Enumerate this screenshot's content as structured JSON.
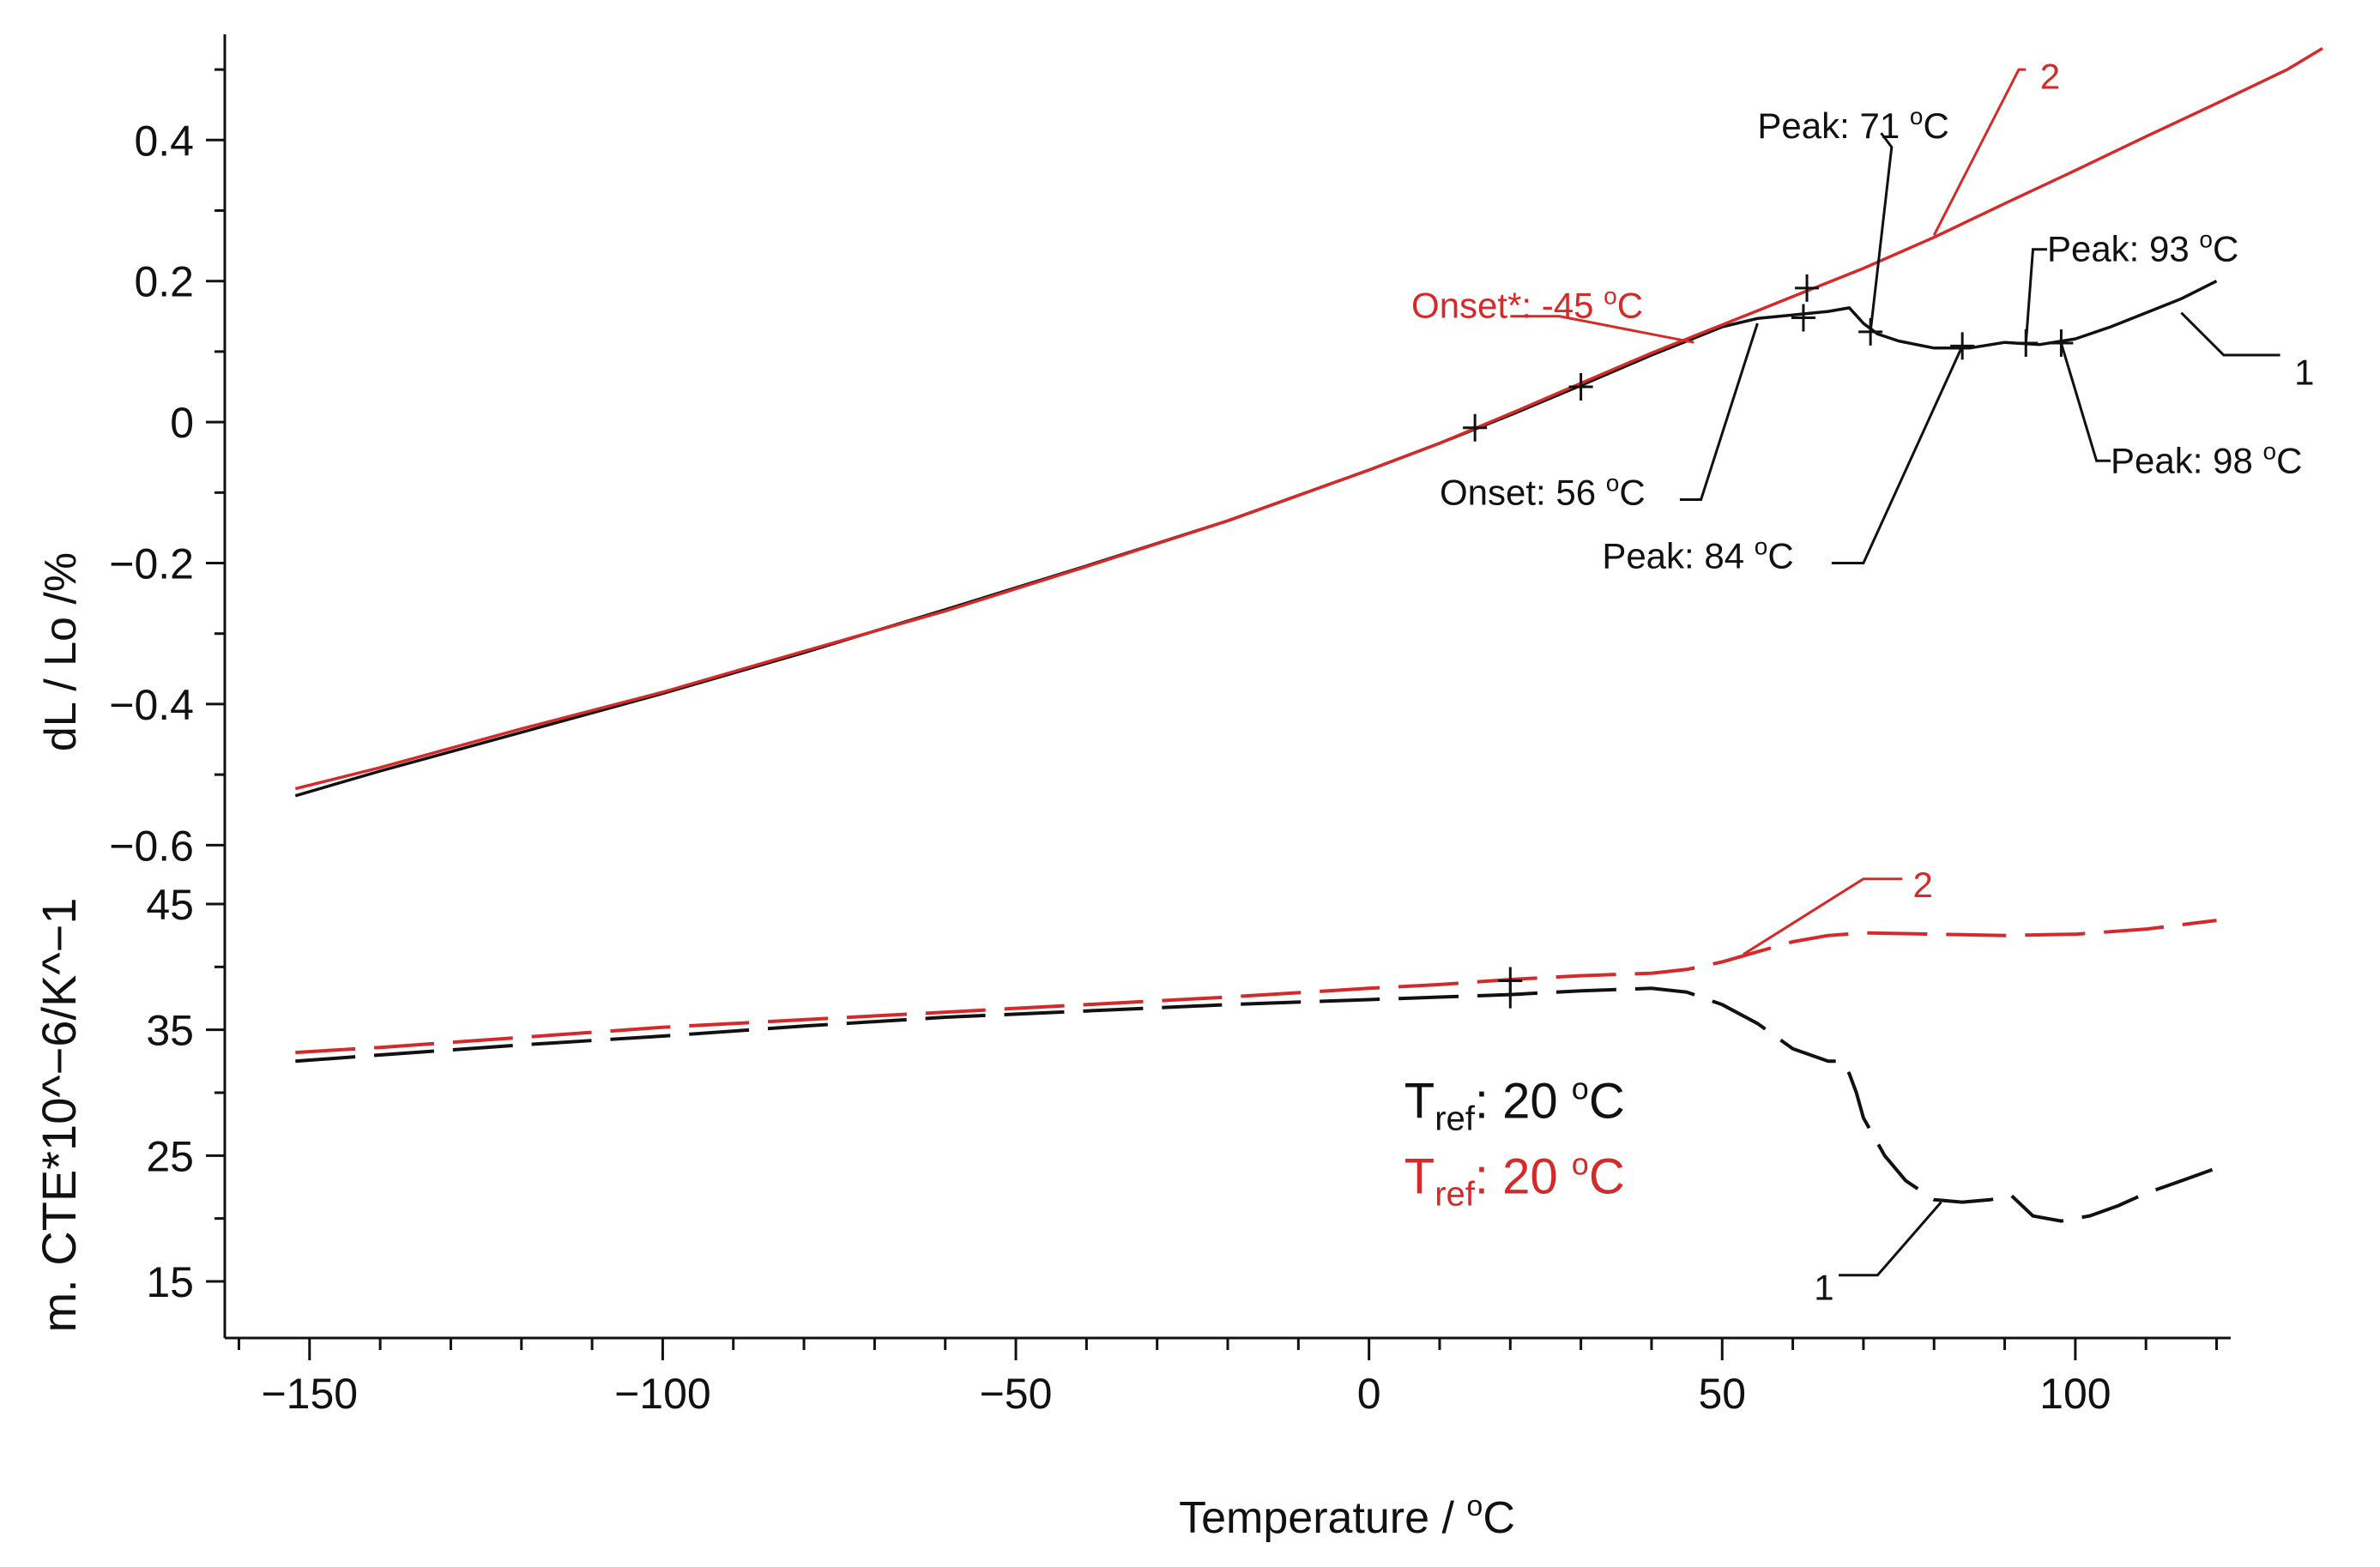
{
  "chart_data": {
    "type": "line",
    "title": "",
    "xlabel": "Temperature / °C",
    "xlabel_main": "Temperature / ",
    "xlabel_sup": "o",
    "xlabel_unit": "C",
    "xlim": [
      -162,
      122
    ],
    "xticks": [
      -150,
      -100,
      -50,
      0,
      50,
      100
    ],
    "xtick_labels": [
      "−150",
      "−100",
      "−50",
      "0",
      "50",
      "100"
    ],
    "colors": {
      "sample1": "#111111",
      "sample2": "#d42a2a"
    },
    "panels": [
      {
        "id": "dl",
        "ylabel": "dL / Lo /%",
        "ylim": [
          -0.63,
          0.55
        ],
        "yticks": [
          -0.6,
          -0.4,
          -0.2,
          0,
          0.2,
          0.4
        ],
        "ytick_labels": [
          "−0.6",
          "−0.4",
          "−0.2",
          "0",
          "0.2",
          "0.4"
        ],
        "series": [
          {
            "name": "1",
            "color": "#111111",
            "dash": false,
            "x": [
              -152,
              -140,
              -120,
              -100,
              -80,
              -60,
              -40,
              -20,
              0,
              10,
              20,
              30,
              40,
              45,
              50,
              55,
              60,
              65,
              68,
              70,
              72,
              75,
              80,
              85,
              90,
              95,
              100,
              105,
              110,
              115,
              120
            ],
            "y": [
              -0.53,
              -0.495,
              -0.44,
              -0.385,
              -0.327,
              -0.266,
              -0.204,
              -0.14,
              -0.068,
              -0.03,
              0.01,
              0.052,
              0.095,
              0.115,
              0.135,
              0.147,
              0.152,
              0.157,
              0.162,
              0.14,
              0.125,
              0.115,
              0.105,
              0.105,
              0.113,
              0.11,
              0.118,
              0.135,
              0.155,
              0.175,
              0.2
            ]
          },
          {
            "name": "2",
            "color": "#d42a2a",
            "dash": false,
            "x": [
              -152,
              -140,
              -120,
              -100,
              -80,
              -60,
              -40,
              -20,
              0,
              10,
              20,
              30,
              40,
              50,
              60,
              70,
              80,
              90,
              100,
              110,
              120,
              130,
              135
            ],
            "y": [
              -0.52,
              -0.49,
              -0.435,
              -0.383,
              -0.325,
              -0.268,
              -0.205,
              -0.14,
              -0.068,
              -0.03,
              0.012,
              0.055,
              0.098,
              0.138,
              0.178,
              0.218,
              0.262,
              0.31,
              0.357,
              0.405,
              0.452,
              0.5,
              0.53
            ]
          }
        ],
        "markers": [
          {
            "x": 15,
            "y": -0.008,
            "color": "#111111"
          },
          {
            "x": 30,
            "y": 0.05,
            "color": "#111111"
          },
          {
            "x": 61.5,
            "y": 0.148,
            "color": "#111111"
          },
          {
            "x": 62,
            "y": 0.19,
            "color": "#111111"
          },
          {
            "x": 71,
            "y": 0.128,
            "color": "#111111"
          },
          {
            "x": 84,
            "y": 0.108,
            "color": "#111111"
          },
          {
            "x": 93,
            "y": 0.112,
            "color": "#111111"
          },
          {
            "x": 98,
            "y": 0.112,
            "color": "#111111"
          }
        ]
      },
      {
        "id": "cte",
        "ylabel": "m. CTE*10^−6/K^−1",
        "ylim": [
          10.5,
          48
        ],
        "yticks": [
          15,
          25,
          35,
          45
        ],
        "ytick_labels": [
          "15",
          "25",
          "35",
          "45"
        ],
        "series": [
          {
            "name": "1",
            "color": "#111111",
            "dash": true,
            "x": [
              -152,
              -140,
              -120,
              -100,
              -80,
              -60,
              -40,
              -20,
              0,
              10,
              20,
              30,
              40,
              45,
              50,
              55,
              60,
              65,
              67,
              68,
              69,
              70,
              73,
              76,
              80,
              84,
              88,
              91,
              94,
              98,
              102,
              106,
              110,
              115,
              120
            ],
            "y": [
              32.5,
              33,
              33.8,
              34.5,
              35.3,
              36,
              36.5,
              37,
              37.4,
              37.6,
              37.8,
              38.1,
              38.3,
              38,
              37,
              35.5,
              33.5,
              32.5,
              32.5,
              31.5,
              30,
              28,
              25,
              23,
              21.5,
              21.3,
              21.5,
              21.8,
              20.2,
              19.8,
              20.2,
              21,
              22,
              23,
              24
            ]
          },
          {
            "name": "2",
            "color": "#d42a2a",
            "dash": true,
            "x": [
              -152,
              -140,
              -120,
              -100,
              -80,
              -60,
              -40,
              -20,
              0,
              10,
              20,
              30,
              40,
              45,
              50,
              55,
              60,
              65,
              70,
              80,
              90,
              100,
              110,
              120
            ],
            "y": [
              33.2,
              33.6,
              34.4,
              35.2,
              35.8,
              36.4,
              37,
              37.6,
              38.3,
              38.6,
              39,
              39.3,
              39.5,
              39.8,
              40.4,
              41.2,
              42,
              42.5,
              42.7,
              42.6,
              42.5,
              42.6,
              43,
              43.7
            ]
          }
        ]
      }
    ],
    "annotations": [
      {
        "text": "Peak: 71 °C",
        "main": "Peak: 71 ",
        "sup": "o",
        "unit": "C",
        "color": "#111111",
        "panel": "dl",
        "tx": 55,
        "ty": 0.42,
        "leader": [
          [
            72.5,
            0.41
          ],
          [
            74,
            0.39
          ],
          [
            71,
            0.128
          ]
        ]
      },
      {
        "text": "Peak: 93 °C",
        "main": "Peak: 93 ",
        "sup": "o",
        "unit": "C",
        "color": "#111111",
        "panel": "dl",
        "tx": 96,
        "ty": 0.245,
        "leader": [
          [
            96,
            0.245
          ],
          [
            94,
            0.245
          ],
          [
            93,
            0.112
          ]
        ]
      },
      {
        "text": "Peak: 98 °C",
        "main": "Peak: 98 ",
        "sup": "o",
        "unit": "C",
        "color": "#111111",
        "panel": "dl",
        "tx": 105,
        "ty": -0.055,
        "leader": [
          [
            105,
            -0.055
          ],
          [
            103,
            -0.055
          ],
          [
            98,
            0.112
          ]
        ]
      },
      {
        "text": "Peak: 84 °C",
        "main": "Peak: 84 ",
        "sup": "o",
        "unit": "C",
        "color": "#111111",
        "panel": "dl",
        "tx": 33,
        "ty": -0.19,
        "leader": [
          [
            65.5,
            -0.2
          ],
          [
            70,
            -0.2
          ],
          [
            84,
            0.108
          ]
        ]
      },
      {
        "text": "Onset: 56 °C",
        "main": "Onset: 56 ",
        "sup": "o",
        "unit": "C",
        "color": "#111111",
        "panel": "dl",
        "tx": 10,
        "ty": -0.1,
        "leader": [
          [
            44,
            -0.11
          ],
          [
            47,
            -0.11
          ],
          [
            55,
            0.14
          ]
        ]
      },
      {
        "text": "Onset*: -45 °C",
        "main": "Onset*: -45 ",
        "sup": "o",
        "unit": "C",
        "color": "#d42a2a",
        "panel": "dl",
        "tx": 6,
        "ty": 0.165,
        "leader": [
          [
            20,
            0.15
          ],
          [
            27,
            0.15
          ],
          [
            46,
            0.113
          ]
        ]
      },
      {
        "text": "2",
        "main": "2",
        "sup": "",
        "unit": "",
        "color": "#d42a2a",
        "panel": "dl",
        "tx": 95,
        "ty": 0.49,
        "leader": [
          [
            93,
            0.5
          ],
          [
            92,
            0.5
          ],
          [
            80,
            0.265
          ]
        ]
      },
      {
        "text": "1",
        "main": "1",
        "sup": "",
        "unit": "",
        "color": "#111111",
        "panel": "dl",
        "tx": 131,
        "ty": 0.07,
        "leader": [
          [
            129,
            0.095
          ],
          [
            121,
            0.095
          ],
          [
            115,
            0.155
          ]
        ]
      },
      {
        "text": "2",
        "main": "2",
        "sup": "",
        "unit": "",
        "color": "#d42a2a",
        "panel": "cte",
        "tx": 77,
        "ty": 46.5,
        "leader": [
          [
            75.5,
            47
          ],
          [
            70,
            47
          ],
          [
            53,
            41
          ]
        ]
      },
      {
        "text": "1",
        "main": "1",
        "sup": "",
        "unit": "",
        "color": "#111111",
        "panel": "cte",
        "tx": 63,
        "ty": 14.5,
        "leader": [
          [
            66.5,
            15.5
          ],
          [
            72,
            15.5
          ],
          [
            81,
            21.3
          ]
        ]
      }
    ],
    "tref": [
      {
        "text": "T_ref: 20 °C",
        "label": "T",
        "sub": "ref",
        "value": ": 20 ",
        "sup": "o",
        "unit": "C",
        "color": "#111111",
        "panel": "cte",
        "tx": 5,
        "ty": 28
      },
      {
        "text": "T_ref: 20 °C",
        "label": "T",
        "sub": "ref",
        "value": ": 20 ",
        "sup": "o",
        "unit": "C",
        "color": "#d42a2a",
        "panel": "cte",
        "tx": 5,
        "ty": 22
      }
    ],
    "cte_markers": [
      {
        "x": 20,
        "y": 38.9,
        "color": "#111111"
      },
      {
        "x": 20,
        "y": 37.8,
        "color": "#111111"
      }
    ]
  }
}
